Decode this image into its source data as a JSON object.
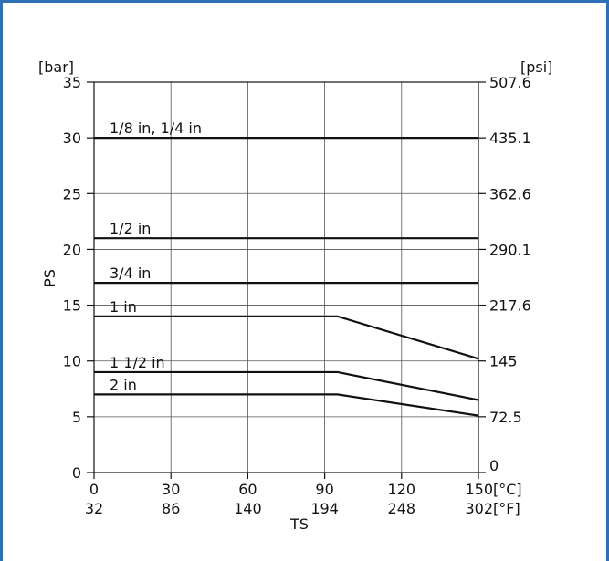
{
  "chart_data": {
    "type": "line",
    "title": "",
    "xlabel": "TS",
    "ylabel": "PS",
    "left_unit": "[bar]",
    "right_unit": "[psi]",
    "x_unit_c": "[°C]",
    "x_unit_f": "[°F]",
    "xlim": [
      0,
      150
    ],
    "ylim": [
      0,
      35
    ],
    "grid": true,
    "x_ticks_c": [
      "0",
      "30",
      "60",
      "90",
      "120",
      "150"
    ],
    "x_ticks_c_values": [
      0,
      30,
      60,
      90,
      120,
      150
    ],
    "x_ticks_f": [
      "32",
      "86",
      "140",
      "194",
      "248",
      "302"
    ],
    "y_ticks_left": [
      "0",
      "5",
      "10",
      "15",
      "20",
      "25",
      "30",
      "35"
    ],
    "y_ticks_left_values": [
      0,
      5,
      10,
      15,
      20,
      25,
      30,
      35
    ],
    "y_ticks_right": [
      "0",
      "72.5",
      "145",
      "217.6",
      "290.1",
      "362.6",
      "435.1",
      "507.6"
    ],
    "y_ticks_right_values": [
      0,
      5,
      10,
      15,
      20,
      25,
      30,
      35
    ],
    "series": [
      {
        "name": "1/8 in, 1/4 in",
        "points": [
          [
            0,
            30
          ],
          [
            150,
            30
          ]
        ]
      },
      {
        "name": "1/2 in",
        "points": [
          [
            0,
            21
          ],
          [
            150,
            21
          ]
        ]
      },
      {
        "name": "3/4 in",
        "points": [
          [
            0,
            17
          ],
          [
            150,
            17
          ]
        ]
      },
      {
        "name": "1 in",
        "points": [
          [
            0,
            14
          ],
          [
            95,
            14
          ],
          [
            150,
            10.2
          ]
        ]
      },
      {
        "name": "1 1/2 in",
        "points": [
          [
            0,
            9
          ],
          [
            95,
            9
          ],
          [
            150,
            6.5
          ]
        ]
      },
      {
        "name": "2 in",
        "points": [
          [
            0,
            7
          ],
          [
            95,
            7
          ],
          [
            150,
            5.1
          ]
        ]
      }
    ]
  }
}
